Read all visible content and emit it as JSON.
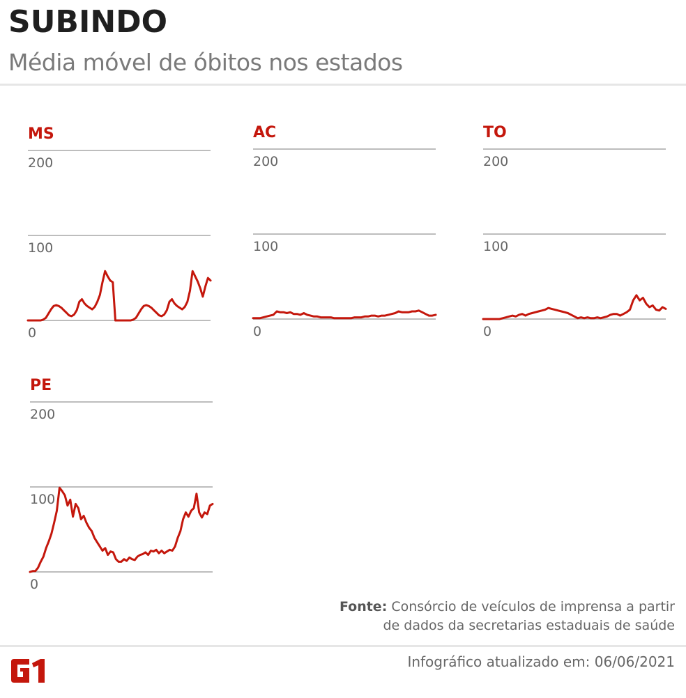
{
  "header": {
    "title": "SUBINDO",
    "subtitle": "Média móvel de óbitos nos estados"
  },
  "colors": {
    "accent": "#c4170c",
    "grid": "#bdbdbd",
    "text_muted": "#666666",
    "title": "#1f1f1f"
  },
  "chart_data": [
    {
      "type": "line",
      "title": "MS",
      "ylabel": "",
      "xlabel": "",
      "ylim": [
        0,
        200
      ],
      "yticks": [
        "0",
        "100",
        "200"
      ],
      "grid": true,
      "series": [
        {
          "name": "MS",
          "values": [
            0,
            0,
            0,
            0,
            0,
            0,
            1,
            3,
            8,
            13,
            17,
            18,
            17,
            15,
            12,
            9,
            6,
            5,
            7,
            12,
            22,
            25,
            20,
            17,
            15,
            13,
            16,
            22,
            30,
            45,
            58,
            52,
            47,
            45,
            0,
            0,
            0,
            0,
            0,
            0,
            0,
            1,
            3,
            8,
            13,
            17,
            18,
            17,
            15,
            12,
            9,
            6,
            5,
            7,
            12,
            22,
            25,
            20,
            17,
            15,
            13,
            16,
            22,
            35,
            58,
            52,
            46,
            38,
            28,
            40,
            50,
            47
          ]
        }
      ]
    },
    {
      "type": "line",
      "title": "AC",
      "ylabel": "",
      "xlabel": "",
      "ylim": [
        0,
        200
      ],
      "yticks": [
        "0",
        "100",
        "200"
      ],
      "grid": true,
      "series": [
        {
          "name": "AC",
          "values": [
            1,
            1,
            1,
            2,
            3,
            4,
            5,
            9,
            8,
            8,
            7,
            8,
            6,
            6,
            5,
            7,
            5,
            4,
            3,
            3,
            2,
            2,
            2,
            2,
            1,
            1,
            1,
            1,
            1,
            1,
            2,
            2,
            2,
            3,
            3,
            4,
            4,
            3,
            4,
            4,
            5,
            6,
            7,
            9,
            8,
            8,
            8,
            9,
            9,
            10,
            8,
            6,
            4,
            4,
            5
          ]
        }
      ]
    },
    {
      "type": "line",
      "title": "TO",
      "ylabel": "",
      "xlabel": "",
      "ylim": [
        0,
        200
      ],
      "yticks": [
        "0",
        "100",
        "200"
      ],
      "grid": true,
      "series": [
        {
          "name": "TO",
          "values": [
            0,
            0,
            0,
            0,
            0,
            0,
            1,
            2,
            3,
            4,
            3,
            5,
            6,
            4,
            6,
            7,
            8,
            9,
            10,
            11,
            13,
            12,
            11,
            10,
            9,
            8,
            7,
            5,
            3,
            1,
            2,
            1,
            2,
            1,
            1,
            2,
            1,
            2,
            3,
            5,
            6,
            6,
            4,
            6,
            8,
            11,
            22,
            28,
            22,
            25,
            18,
            14,
            16,
            11,
            10,
            14,
            12
          ]
        }
      ]
    },
    {
      "type": "line",
      "title": "PE",
      "ylabel": "",
      "xlabel": "",
      "ylim": [
        0,
        200
      ],
      "yticks": [
        "0",
        "100",
        "200"
      ],
      "grid": true,
      "series": [
        {
          "name": "PE",
          "values": [
            0,
            1,
            1,
            5,
            12,
            18,
            28,
            36,
            45,
            58,
            72,
            99,
            95,
            90,
            78,
            85,
            65,
            80,
            75,
            62,
            66,
            58,
            52,
            48,
            40,
            35,
            30,
            25,
            28,
            20,
            24,
            23,
            15,
            12,
            12,
            15,
            13,
            17,
            15,
            14,
            18,
            20,
            21,
            23,
            20,
            25,
            24,
            26,
            22,
            25,
            22,
            24,
            26,
            25,
            30,
            40,
            48,
            62,
            70,
            65,
            72,
            75,
            92,
            70,
            64,
            70,
            68,
            78,
            80
          ]
        }
      ]
    }
  ],
  "footer": {
    "source_label": "Fonte:",
    "source_line1": "Consórcio de veículos de imprensa a partir",
    "source_line2": "de dados da secretarias estaduais de saúde",
    "updated": "Infográfico atualizado em: 06/06/2021",
    "logo_text": "G1"
  }
}
